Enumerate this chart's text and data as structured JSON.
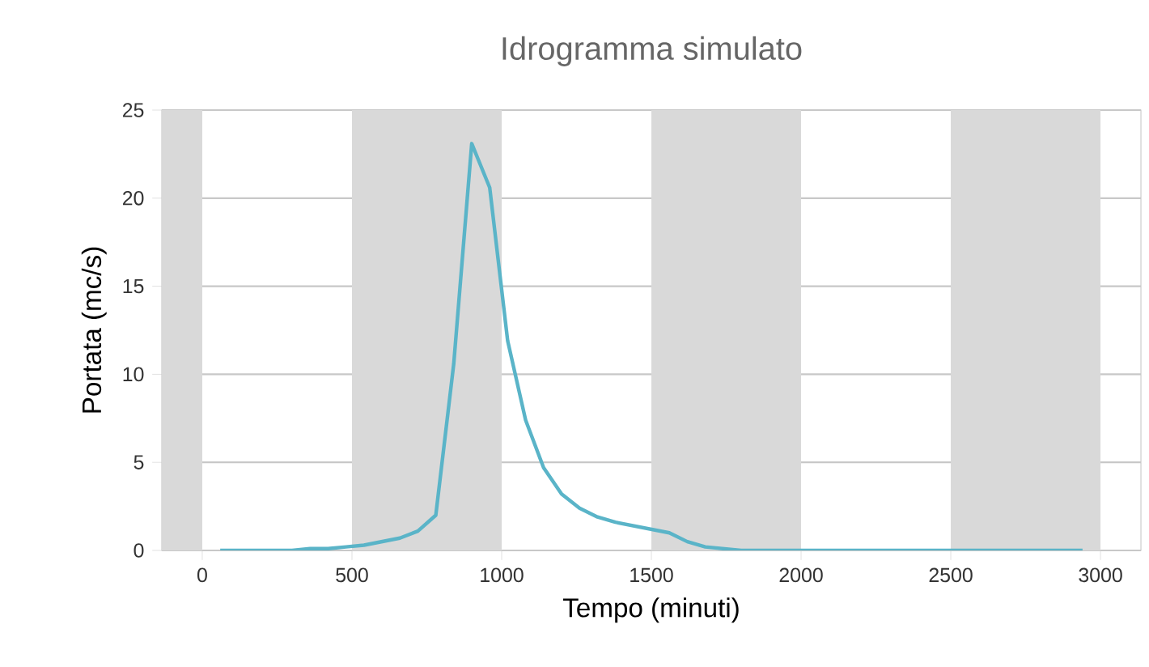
{
  "chart_data": {
    "type": "line",
    "title": "Idrogramma simulato",
    "xlabel": "Tempo (minuti)",
    "ylabel": "Portata (mc/s)",
    "x": [
      60,
      120,
      180,
      240,
      300,
      360,
      420,
      480,
      540,
      600,
      660,
      720,
      780,
      840,
      900,
      960,
      1020,
      1080,
      1140,
      1200,
      1260,
      1320,
      1380,
      1440,
      1500,
      1560,
      1620,
      1680,
      1740,
      1800,
      1860,
      2100,
      2400,
      2700,
      2940
    ],
    "series": [
      {
        "color": "#5ab4c8",
        "values": [
          0,
          0,
          0,
          0,
          0,
          0.1,
          0.1,
          0.2,
          0.3,
          0.5,
          0.7,
          1.1,
          2.0,
          10.6,
          23.1,
          20.6,
          11.9,
          7.4,
          4.7,
          3.2,
          2.4,
          1.9,
          1.6,
          1.4,
          1.2,
          1.0,
          0.5,
          0.2,
          0.1,
          0,
          0,
          0,
          0,
          0,
          0
        ]
      }
    ],
    "xlim": [
      -135,
      3135
    ],
    "ylim": [
      0,
      25
    ],
    "xticks": [
      0,
      500,
      1000,
      1500,
      2000,
      2500,
      3000
    ],
    "yticks": [
      0,
      5,
      10,
      15,
      20,
      25
    ],
    "bands": [
      {
        "axis": "x",
        "from": -135,
        "to": 0,
        "color": "#d9d9d9"
      },
      {
        "axis": "x",
        "from": 500,
        "to": 1000,
        "color": "#d9d9d9"
      },
      {
        "axis": "x",
        "from": 1500,
        "to": 2000,
        "color": "#d9d9d9"
      },
      {
        "axis": "x",
        "from": 2500,
        "to": 3000,
        "color": "#d9d9d9"
      }
    ],
    "grid": "y",
    "marker": "none",
    "line_style": "solid"
  }
}
